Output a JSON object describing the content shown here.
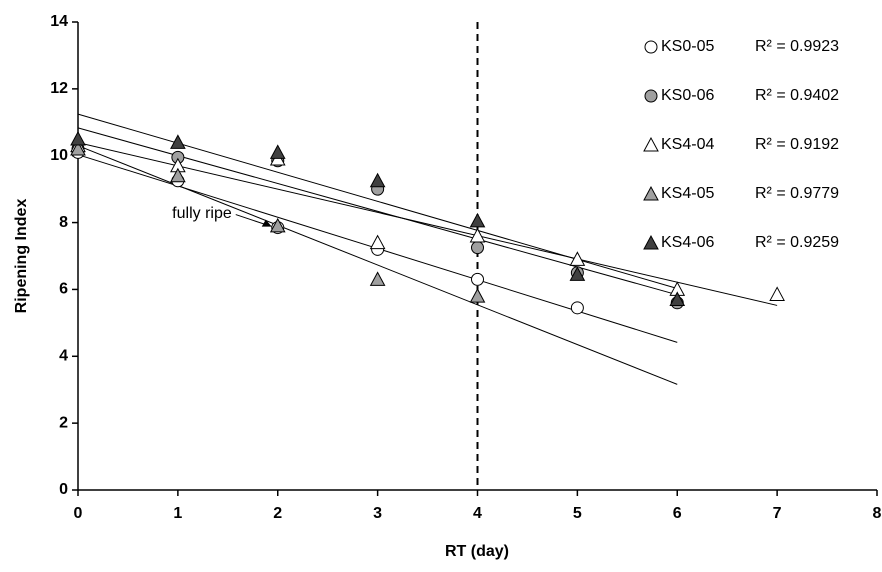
{
  "chart_data": {
    "type": "scatter",
    "x_label": "RT (day)",
    "y_label": "Ripening Index",
    "x": [
      0,
      1,
      2,
      3,
      4,
      5,
      6,
      7
    ],
    "xlim": [
      0,
      8
    ],
    "xticks": [
      0,
      1,
      2,
      3,
      4,
      5,
      6,
      7,
      8
    ],
    "ylim": [
      0,
      14
    ],
    "yticks": [
      0,
      2,
      4,
      6,
      8,
      10,
      12,
      14
    ],
    "grid": false,
    "vline": 4,
    "annotation": {
      "text": "fully ripe",
      "x": 2,
      "y": 7.85
    },
    "series": [
      {
        "name": "KS0-05",
        "r2_label": "R² = 0.9923",
        "marker": "circle",
        "color": "#ffffff",
        "values": [
          10.1,
          9.25,
          7.85,
          7.2,
          6.3,
          5.45,
          null,
          null
        ],
        "trend_x": [
          0,
          6
        ]
      },
      {
        "name": "KS0-06",
        "r2_label": "R² = 0.9402",
        "marker": "circle",
        "color": "#a0a0a0",
        "values": [
          10.2,
          9.95,
          9.85,
          9.0,
          7.25,
          6.5,
          5.6,
          null
        ],
        "trend_x": [
          0,
          6
        ]
      },
      {
        "name": "KS4-04",
        "r2_label": "R² = 0.9192",
        "marker": "triangle",
        "color": "#ffffff",
        "values": [
          10.3,
          9.7,
          9.9,
          7.4,
          7.6,
          6.9,
          6.0,
          5.85
        ],
        "trend_x": [
          0,
          7
        ]
      },
      {
        "name": "KS4-05",
        "r2_label": "R² = 0.9779",
        "marker": "triangle",
        "color": "#a0a0a0",
        "values": [
          10.2,
          9.4,
          7.9,
          6.3,
          5.8,
          null,
          null,
          null
        ],
        "trend_x": [
          0,
          6
        ]
      },
      {
        "name": "KS4-06",
        "r2_label": "R² = 0.9259",
        "marker": "triangle",
        "color": "#404040",
        "values": [
          10.5,
          10.4,
          10.1,
          9.25,
          8.05,
          6.45,
          5.7,
          null
        ],
        "trend_x": [
          0,
          6
        ]
      }
    ]
  }
}
